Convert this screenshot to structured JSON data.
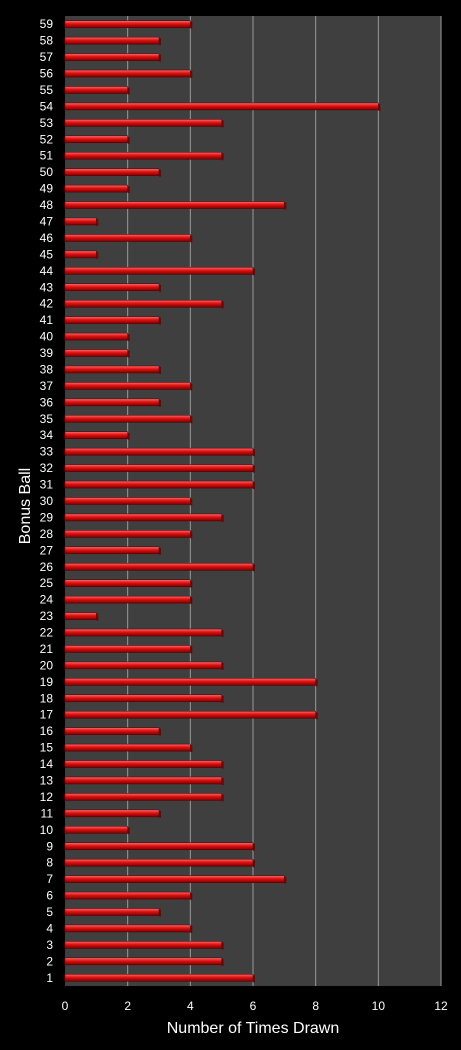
{
  "chart_data": {
    "type": "bar",
    "orientation": "horizontal",
    "xlabel": "Number of Times Drawn",
    "ylabel": "Bonus Ball",
    "xlim": [
      0,
      12
    ],
    "x_ticks": [
      "0",
      "2",
      "4",
      "6",
      "8",
      "10",
      "12"
    ],
    "grid": "vertical",
    "colors": {
      "bar": "#e01010",
      "bar_highlight": "#ff6a6a",
      "bar_shadow": "#7a0000",
      "plot_background": "#3f3f3f",
      "gridline": "#9a9a9a",
      "text": "#ffffff",
      "background": "#000000"
    },
    "categories": [
      "1",
      "2",
      "3",
      "4",
      "5",
      "6",
      "7",
      "8",
      "9",
      "10",
      "11",
      "12",
      "13",
      "14",
      "15",
      "16",
      "17",
      "18",
      "19",
      "20",
      "21",
      "22",
      "23",
      "24",
      "25",
      "26",
      "27",
      "28",
      "29",
      "30",
      "31",
      "32",
      "33",
      "34",
      "35",
      "36",
      "37",
      "38",
      "39",
      "40",
      "41",
      "42",
      "43",
      "44",
      "45",
      "46",
      "47",
      "48",
      "49",
      "50",
      "51",
      "52",
      "53",
      "54",
      "55",
      "56",
      "57",
      "58",
      "59"
    ],
    "values": [
      6,
      5,
      5,
      4,
      3,
      4,
      7,
      6,
      6,
      2,
      3,
      5,
      5,
      5,
      4,
      3,
      8,
      5,
      8,
      5,
      4,
      5,
      1,
      4,
      4,
      6,
      3,
      4,
      5,
      4,
      6,
      6,
      6,
      2,
      4,
      3,
      4,
      3,
      2,
      2,
      3,
      5,
      3,
      6,
      1,
      4,
      1,
      7,
      2,
      3,
      5,
      2,
      5,
      10,
      2,
      4,
      3,
      3,
      4
    ]
  }
}
